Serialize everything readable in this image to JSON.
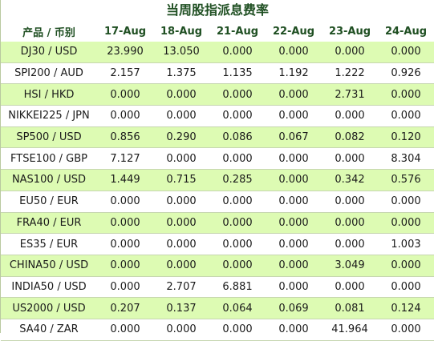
{
  "title": "当周股指派息费率",
  "header": {
    "product": "产品 / 币别",
    "dates": [
      "17-Aug",
      "18-Aug",
      "21-Aug",
      "22-Aug",
      "23-Aug",
      "24-Aug"
    ]
  },
  "rows": [
    {
      "product": "DJ30 / USD",
      "values": [
        "23.990",
        "13.050",
        "0.000",
        "0.000",
        "0.000",
        "0.000"
      ]
    },
    {
      "product": "SPI200 / AUD",
      "values": [
        "2.157",
        "1.375",
        "1.135",
        "1.192",
        "1.222",
        "0.926"
      ]
    },
    {
      "product": "HSI / HKD",
      "values": [
        "0.000",
        "0.000",
        "0.000",
        "0.000",
        "2.731",
        "0.000"
      ]
    },
    {
      "product": "NIKKEI225 / JPN",
      "values": [
        "0.000",
        "0.000",
        "0.000",
        "0.000",
        "0.000",
        "0.000"
      ]
    },
    {
      "product": "SP500 / USD",
      "values": [
        "0.856",
        "0.290",
        "0.086",
        "0.067",
        "0.082",
        "0.120"
      ]
    },
    {
      "product": "FTSE100 / GBP",
      "values": [
        "7.127",
        "0.000",
        "0.000",
        "0.000",
        "0.000",
        "8.304"
      ]
    },
    {
      "product": "NAS100 / USD",
      "values": [
        "1.449",
        "0.715",
        "0.285",
        "0.000",
        "0.342",
        "0.576"
      ]
    },
    {
      "product": "EU50 / EUR",
      "values": [
        "0.000",
        "0.000",
        "0.000",
        "0.000",
        "0.000",
        "0.000"
      ]
    },
    {
      "product": "FRA40 / EUR",
      "values": [
        "0.000",
        "0.000",
        "0.000",
        "0.000",
        "0.000",
        "0.000"
      ]
    },
    {
      "product": "ES35 / EUR",
      "values": [
        "0.000",
        "0.000",
        "0.000",
        "0.000",
        "0.000",
        "1.003"
      ]
    },
    {
      "product": "CHINA50 / USD",
      "values": [
        "0.000",
        "0.000",
        "0.000",
        "0.000",
        "3.049",
        "0.000"
      ]
    },
    {
      "product": "INDIA50 / USD",
      "values": [
        "0.000",
        "2.707",
        "6.881",
        "0.000",
        "0.000",
        "0.000"
      ]
    },
    {
      "product": "US2000 / USD",
      "values": [
        "0.207",
        "0.137",
        "0.064",
        "0.069",
        "0.081",
        "0.124"
      ]
    },
    {
      "product": "SA40 / ZAR",
      "values": [
        "0.000",
        "0.000",
        "0.000",
        "0.000",
        "41.964",
        "0.000"
      ]
    }
  ],
  "colors": {
    "header_text": "#1f4f22",
    "row_odd": "#ddfbb3",
    "row_even": "#ffffff",
    "cell_text": "#1a1a1a"
  }
}
